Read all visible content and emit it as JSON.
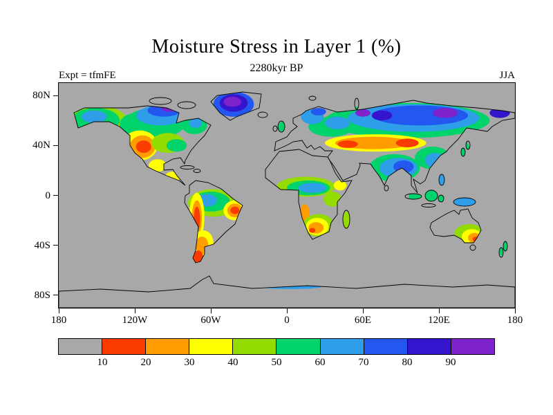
{
  "chart_data": {
    "type": "heatmap",
    "title": "Moisture Stress in Layer 1 (%)",
    "subtitle": "2280kyr BP",
    "experiment": "Expt = tfmFE",
    "season": "JJA",
    "variable": "Moisture Stress in Layer 1",
    "units": "%",
    "projection": "equirectangular",
    "lon_range": [
      -180,
      180
    ],
    "lat_range": [
      -90,
      90
    ],
    "x_ticks": [
      {
        "label": "180",
        "lon": -180
      },
      {
        "label": "120W",
        "lon": -120
      },
      {
        "label": "60W",
        "lon": -60
      },
      {
        "label": "0",
        "lon": 0
      },
      {
        "label": "60E",
        "lon": 60
      },
      {
        "label": "120E",
        "lon": 120
      },
      {
        "label": "180",
        "lon": 180
      }
    ],
    "y_ticks": [
      {
        "label": "80N",
        "lat": 80
      },
      {
        "label": "40N",
        "lat": 40
      },
      {
        "label": "0",
        "lat": 0
      },
      {
        "label": "40S",
        "lat": -40
      },
      {
        "label": "80S",
        "lat": -80
      }
    ],
    "levels": [
      10,
      20,
      30,
      40,
      50,
      60,
      70,
      80,
      90
    ],
    "bin_colors": [
      "#a8a8a8",
      "#fa3c00",
      "#ff9c00",
      "#ffff00",
      "#94dc00",
      "#00d26c",
      "#2e9ee8",
      "#2457f0",
      "#3414cc",
      "#7e22cc"
    ],
    "background_color": "#a8a8a8",
    "regions": [
      {
        "name": "alaska-outer",
        "lon": -150,
        "lat": 58,
        "rlon": 25,
        "rlat": 14,
        "value": 45
      },
      {
        "name": "alaska-green",
        "lon": -151,
        "lat": 60,
        "rlon": 19,
        "rlat": 10,
        "value": 55
      },
      {
        "name": "alaska-blue",
        "lon": -152,
        "lat": 63,
        "rlon": 10,
        "rlat": 5,
        "value": 65
      },
      {
        "name": "wcanada-green",
        "lon": -118,
        "lat": 57,
        "rlon": 14,
        "rlat": 9,
        "value": 55
      },
      {
        "name": "canada-green",
        "lon": -104,
        "lat": 58,
        "rlon": 24,
        "rlat": 12,
        "value": 55
      },
      {
        "name": "canada-blue",
        "lon": -100,
        "lat": 64,
        "rlon": 19,
        "rlat": 8,
        "value": 65
      },
      {
        "name": "canada-deepblue",
        "lon": -97,
        "lat": 68,
        "rlon": 13,
        "rlat": 5,
        "value": 75
      },
      {
        "name": "canada-purple",
        "lon": -93,
        "lat": 70,
        "rlon": 6,
        "rlat": 3,
        "value": 95
      },
      {
        "name": "quebec-green",
        "lon": -73,
        "lat": 56,
        "rlon": 10,
        "rlat": 7,
        "value": 55
      },
      {
        "name": "quebec-blue",
        "lon": -72,
        "lat": 58,
        "rlon": 5,
        "rlat": 4,
        "value": 65
      },
      {
        "name": "us-west-yellow",
        "lon": -116,
        "lat": 40,
        "rlon": 14,
        "rlat": 12,
        "value": 35
      },
      {
        "name": "us-west-orange",
        "lon": -114,
        "lat": 39,
        "rlon": 10,
        "rlat": 9,
        "value": 25
      },
      {
        "name": "us-west-red",
        "lon": -113,
        "lat": 39,
        "rlon": 6,
        "rlat": 5,
        "value": 15
      },
      {
        "name": "us-central-green",
        "lon": -94,
        "lat": 42,
        "rlon": 13,
        "rlat": 8,
        "value": 45
      },
      {
        "name": "us-east-green",
        "lon": -87,
        "lat": 40,
        "rlon": 8,
        "rlat": 5,
        "value": 55
      },
      {
        "name": "mexico-yellow",
        "lon": -102,
        "lat": 24,
        "rlon": 7,
        "rlat": 5,
        "value": 35
      },
      {
        "name": "camerica-yellow",
        "lon": -90,
        "lat": 15,
        "rlon": 6,
        "rlat": 4,
        "value": 35
      },
      {
        "name": "greenland-blue",
        "lon": -42,
        "lat": 73,
        "rlon": 16,
        "rlat": 10,
        "value": 75
      },
      {
        "name": "greenland-deepblue",
        "lon": -42,
        "lat": 74,
        "rlon": 11,
        "rlat": 7,
        "value": 85
      },
      {
        "name": "greenland-purple",
        "lon": -43,
        "lat": 75,
        "rlon": 7,
        "rlat": 4,
        "value": 95
      },
      {
        "name": "amazon-outer",
        "lon": -58,
        "lat": -6,
        "rlon": 20,
        "rlat": 11,
        "value": 45
      },
      {
        "name": "amazon-green",
        "lon": -60,
        "lat": -5,
        "rlon": 15,
        "rlat": 8,
        "value": 55
      },
      {
        "name": "amazon-blue",
        "lon": -63,
        "lat": -4,
        "rlon": 8,
        "rlat": 5,
        "value": 65
      },
      {
        "name": "andes-yellow",
        "lon": -71,
        "lat": -17,
        "rlon": 6,
        "rlat": 19,
        "value": 35
      },
      {
        "name": "andes-orange",
        "lon": -71,
        "lat": -18,
        "rlon": 4,
        "rlat": 14,
        "value": 25
      },
      {
        "name": "andes-red",
        "lon": -71,
        "lat": -19,
        "rlon": 2.5,
        "rlat": 10,
        "value": 15
      },
      {
        "name": "brazil-yellow",
        "lon": -41,
        "lat": -12,
        "rlon": 9,
        "rlat": 8,
        "value": 35
      },
      {
        "name": "brazil-orange",
        "lon": -41,
        "lat": -12,
        "rlon": 6,
        "rlat": 5.5,
        "value": 25
      },
      {
        "name": "brazil-red",
        "lon": -41,
        "lat": -12,
        "rlon": 3.5,
        "rlat": 3,
        "value": 15
      },
      {
        "name": "argentina-yellow",
        "lon": -66,
        "lat": -38,
        "rlon": 8,
        "rlat": 10,
        "value": 35
      },
      {
        "name": "argentina-orange",
        "lon": -67,
        "lat": -40,
        "rlon": 5,
        "rlat": 7,
        "value": 25
      },
      {
        "name": "patagonia-red",
        "lon": -70,
        "lat": -50,
        "rlon": 4,
        "rlat": 6,
        "value": 15
      },
      {
        "name": "sahel-ring",
        "lon": 15,
        "lat": 7,
        "rlon": 23,
        "rlat": 8,
        "value": 45
      },
      {
        "name": "central-africa-green",
        "lon": 17,
        "lat": 6,
        "rlon": 17,
        "rlat": 6,
        "value": 55
      },
      {
        "name": "central-africa-blue",
        "lon": 20,
        "lat": 6,
        "rlon": 11,
        "rlat": 4,
        "value": 65
      },
      {
        "name": "horn-yellow",
        "lon": 42,
        "lat": 8,
        "rlon": 5,
        "rlat": 4,
        "value": 35
      },
      {
        "name": "east-africa-green",
        "lon": 36,
        "lat": -3,
        "rlon": 7,
        "rlat": 6,
        "value": 45
      },
      {
        "name": "angola-orange",
        "lon": 14,
        "lat": -15,
        "rlon": 4,
        "rlat": 8,
        "value": 25
      },
      {
        "name": "safrica-green",
        "lon": 25,
        "lat": -24,
        "rlon": 12,
        "rlat": 9,
        "value": 45
      },
      {
        "name": "safrica-yellow",
        "lon": 24,
        "lat": -25,
        "rlon": 9,
        "rlat": 7,
        "value": 35
      },
      {
        "name": "safrica-orange",
        "lon": 23,
        "lat": -26,
        "rlon": 6,
        "rlat": 4.5,
        "value": 25
      },
      {
        "name": "safrica-red",
        "lon": 20,
        "lat": -28,
        "rlon": 2.5,
        "rlat": 2,
        "value": 15
      },
      {
        "name": "madagascar-green",
        "lon": 47,
        "lat": -20,
        "rlon": 3,
        "rlat": 7,
        "value": 45
      },
      {
        "name": "siberia-outer",
        "lon": 95,
        "lat": 60,
        "rlon": 65,
        "rlat": 14,
        "value": 55
      },
      {
        "name": "siberia-blue",
        "lon": 100,
        "lat": 62,
        "rlon": 52,
        "rlat": 11,
        "value": 65
      },
      {
        "name": "siberia-deepblue",
        "lon": 105,
        "lat": 64,
        "rlon": 38,
        "rlat": 8,
        "value": 75
      },
      {
        "name": "siberia-purple-e",
        "lon": 125,
        "lat": 66,
        "rlon": 10,
        "rlat": 4,
        "value": 95
      },
      {
        "name": "siberia-purple-w",
        "lon": 60,
        "lat": 66,
        "rlon": 6,
        "rlat": 3,
        "value": 95
      },
      {
        "name": "urals-deepblue",
        "lon": 75,
        "lat": 64,
        "rlon": 8,
        "rlat": 4,
        "value": 85
      },
      {
        "name": "chukotka-deepblue",
        "lon": 168,
        "lat": 66,
        "rlon": 8,
        "rlat": 4,
        "value": 85
      },
      {
        "name": "europe-green",
        "lon": 35,
        "lat": 55,
        "rlon": 18,
        "rlat": 8,
        "value": 55
      },
      {
        "name": "europe-blue",
        "lon": 40,
        "lat": 58,
        "rlon": 10,
        "rlat": 5,
        "value": 65
      },
      {
        "name": "scandinavia-blue",
        "lon": 20,
        "lat": 63,
        "rlon": 9,
        "rlat": 6,
        "value": 65
      },
      {
        "name": "scandinavia-deepblue",
        "lon": 25,
        "lat": 67,
        "rlon": 6,
        "rlat": 3,
        "value": 75
      },
      {
        "name": "uk-green",
        "lon": -3,
        "lat": 55,
        "rlon": 4,
        "rlat": 4,
        "value": 55
      },
      {
        "name": "centralasia-yellow",
        "lon": 70,
        "lat": 42,
        "rlon": 40,
        "rlat": 7,
        "value": 35
      },
      {
        "name": "centralasia-orange",
        "lon": 68,
        "lat": 42,
        "rlon": 30,
        "rlat": 5,
        "value": 25
      },
      {
        "name": "centralasia-red-w",
        "lon": 48,
        "lat": 41,
        "rlon": 8,
        "rlat": 3,
        "value": 15
      },
      {
        "name": "centralasia-red-e",
        "lon": 95,
        "lat": 42,
        "rlon": 9,
        "rlat": 3.5,
        "value": 15
      },
      {
        "name": "india-green",
        "lon": 85,
        "lat": 22,
        "rlon": 20,
        "rlat": 11,
        "value": 55
      },
      {
        "name": "india-blue",
        "lon": 88,
        "lat": 22,
        "rlon": 15,
        "rlat": 8,
        "value": 65
      },
      {
        "name": "india-deepblue",
        "lon": 92,
        "lat": 23,
        "rlon": 8,
        "rlat": 5,
        "value": 75
      },
      {
        "name": "china-green",
        "lon": 115,
        "lat": 30,
        "rlon": 14,
        "rlat": 9,
        "value": 55
      },
      {
        "name": "china-blue",
        "lon": 117,
        "lat": 28,
        "rlon": 8,
        "rlat": 6,
        "value": 65
      },
      {
        "name": "japan-green",
        "lon": 139,
        "lat": 38,
        "rlon": 5,
        "rlat": 6,
        "value": 55
      },
      {
        "name": "indonesia-green",
        "lon": 112,
        "lat": -1,
        "rlon": 16,
        "rlat": 5,
        "value": 55
      },
      {
        "name": "newguinea-blue",
        "lon": 140,
        "lat": -5,
        "rlon": 9,
        "rlat": 4,
        "value": 65
      },
      {
        "name": "philippines-blue",
        "lon": 122,
        "lat": 13,
        "rlon": 3,
        "rlat": 5,
        "value": 65
      },
      {
        "name": "australia-green",
        "lon": 144,
        "lat": -31,
        "rlon": 12,
        "rlat": 8,
        "value": 45
      },
      {
        "name": "australia-yellow",
        "lon": 146,
        "lat": -33,
        "rlon": 8,
        "rlat": 6,
        "value": 35
      },
      {
        "name": "australia-orange",
        "lon": 148,
        "lat": -34,
        "rlon": 5,
        "rlat": 4,
        "value": 25
      },
      {
        "name": "australia-red",
        "lon": 149,
        "lat": -35,
        "rlon": 2.5,
        "rlat": 2,
        "value": 15
      },
      {
        "name": "newzealand-green",
        "lon": 171,
        "lat": -42,
        "rlon": 4,
        "rlat": 7,
        "value": 55
      },
      {
        "name": "antarctic-coast-blue",
        "lon": 3,
        "lat": -73,
        "rlon": 25,
        "rlat": 2,
        "value": 65
      }
    ]
  }
}
